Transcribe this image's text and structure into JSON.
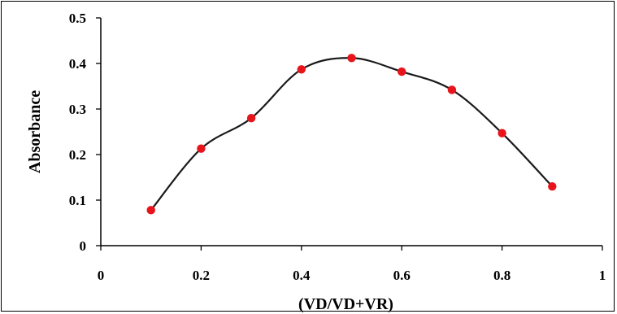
{
  "chart_data": {
    "type": "scatter",
    "title": "",
    "xlabel": "(VD/VD+VR)",
    "ylabel": "Absorbance",
    "xlim": [
      0,
      1
    ],
    "ylim": [
      0,
      0.5
    ],
    "x_ticks": [
      0,
      0.2,
      0.4,
      0.6,
      0.8,
      1
    ],
    "x_tick_labels": [
      "0",
      "0.2",
      "0.4",
      "0.6",
      "0.8",
      "1"
    ],
    "y_ticks": [
      0,
      0.1,
      0.2,
      0.3,
      0.4,
      0.5
    ],
    "y_tick_labels": [
      "0",
      "0.1",
      "0.2",
      "0.3",
      "0.4",
      "0.5"
    ],
    "grid": false,
    "legend": "none",
    "series": [
      {
        "x": [
          0.1,
          0.2,
          0.3,
          0.4,
          0.5,
          0.6,
          0.7,
          0.8,
          0.9
        ],
        "y": [
          0.078,
          0.213,
          0.28,
          0.387,
          0.412,
          0.382,
          0.342,
          0.247,
          0.13
        ],
        "marker_color": "#e8141b",
        "line_color": "#1a1a1a",
        "smooth": true
      }
    ]
  }
}
